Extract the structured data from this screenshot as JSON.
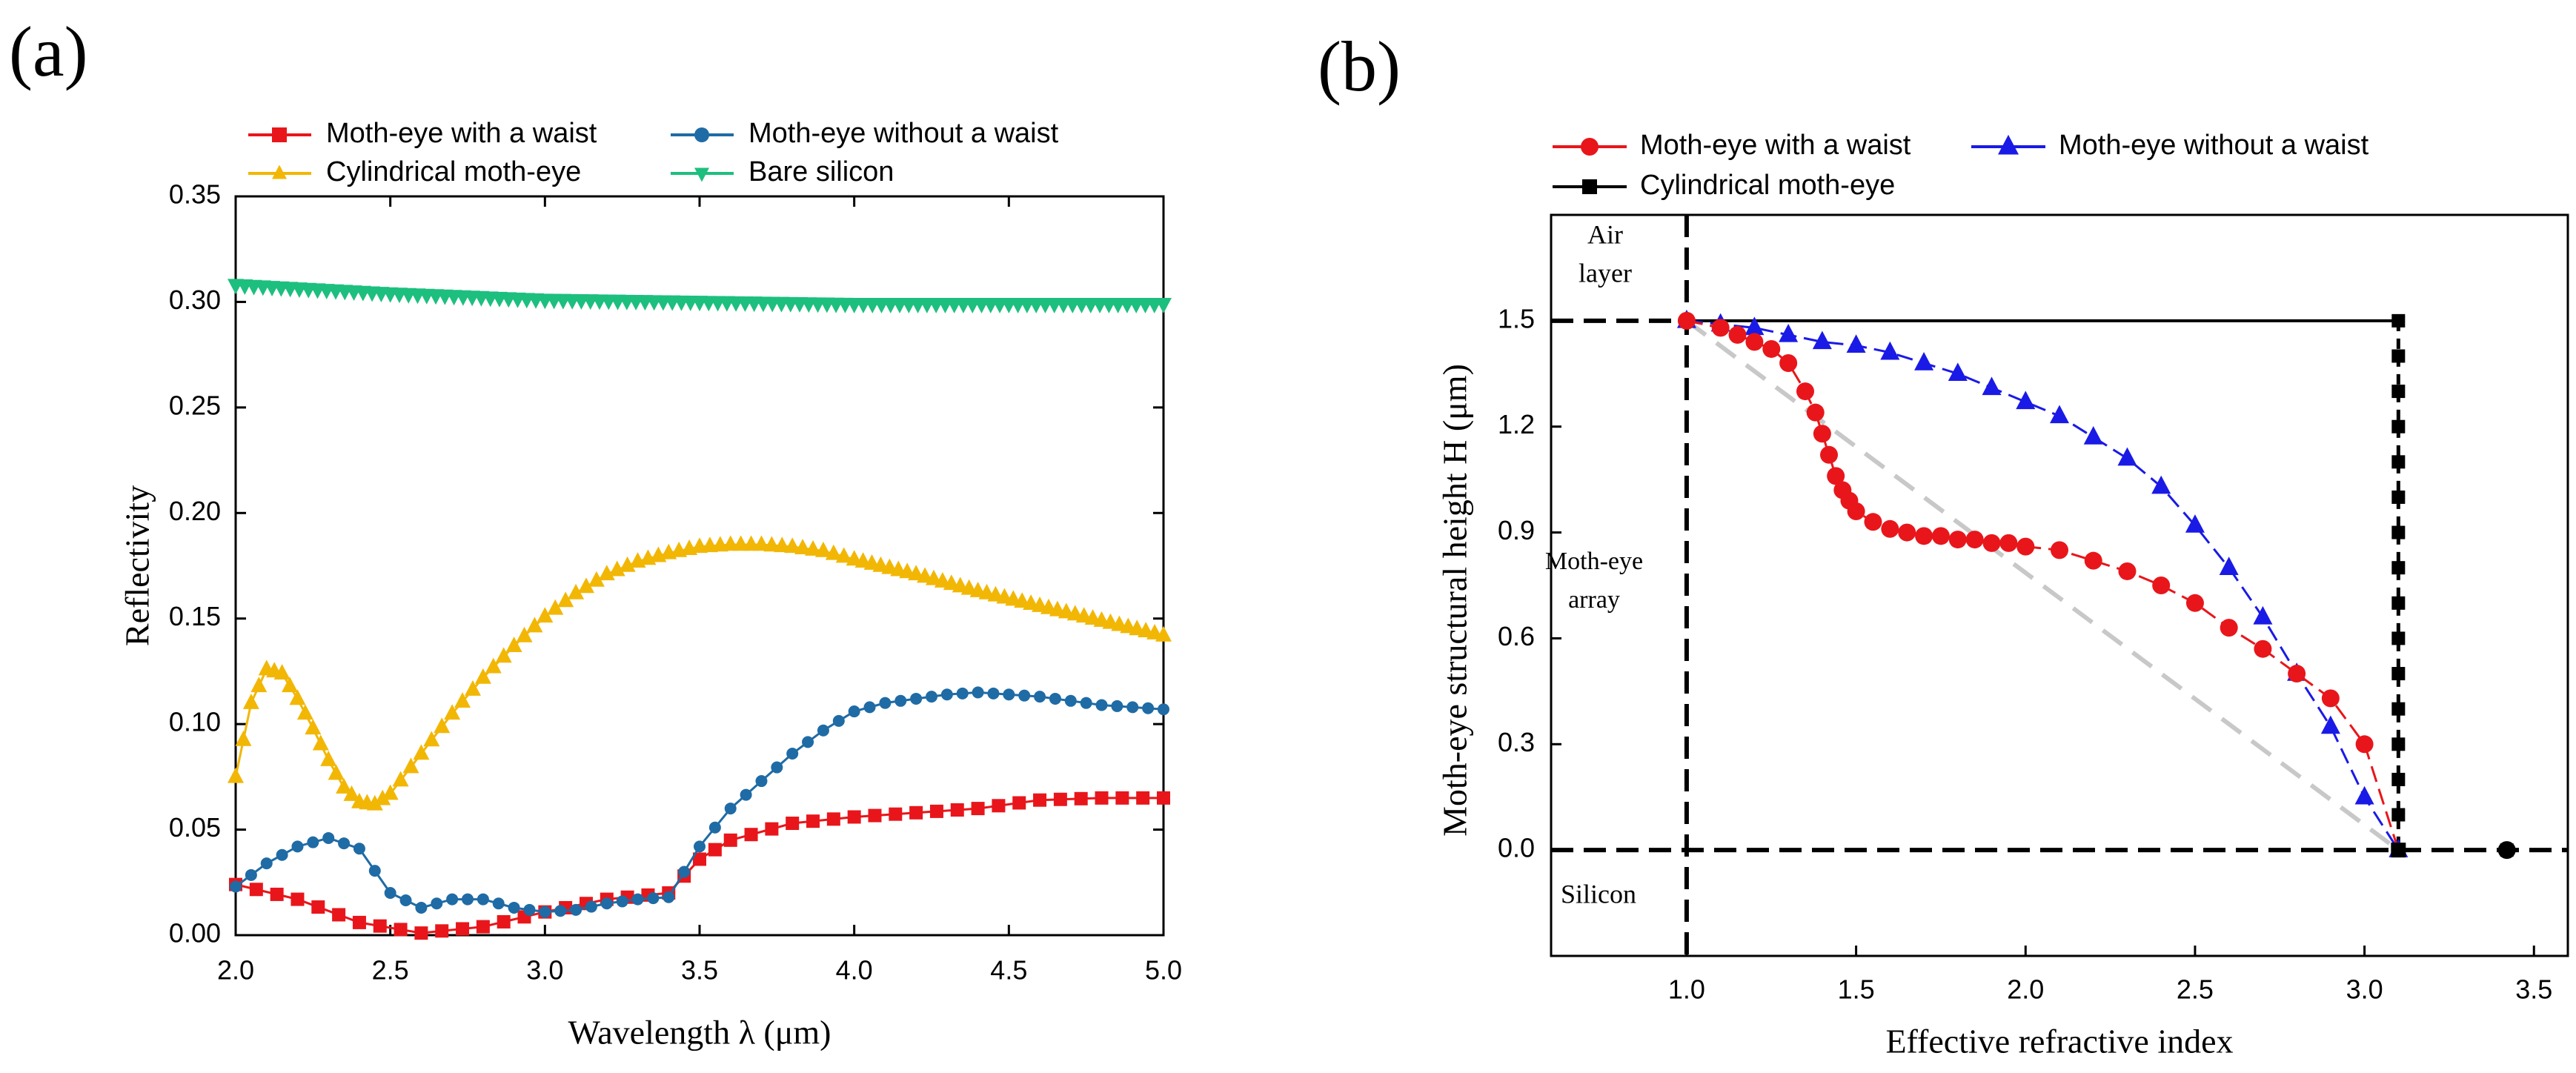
{
  "chart_data": [
    {
      "panel_label": "(a)",
      "type": "line",
      "xlabel": "Wavelength  λ (μm)",
      "ylabel": "Reflectivity",
      "xlim": [
        2.0,
        5.0
      ],
      "ylim": [
        0.0,
        0.35
      ],
      "xticks": [
        "2.0",
        "2.5",
        "3.0",
        "3.5",
        "4.0",
        "4.5",
        "5.0"
      ],
      "yticks": [
        "0.00",
        "0.05",
        "0.10",
        "0.15",
        "0.20",
        "0.25",
        "0.30",
        "0.35"
      ],
      "legend_position": "top",
      "series": [
        {
          "name": "Moth-eye with a waist",
          "color": "#e8161b",
          "marker": "square",
          "x": [
            2.0,
            2.2,
            2.4,
            2.6,
            2.8,
            3.0,
            3.2,
            3.4,
            3.5,
            3.6,
            3.8,
            4.0,
            4.2,
            4.4,
            4.6,
            4.8,
            5.0
          ],
          "y": [
            0.024,
            0.017,
            0.006,
            0.001,
            0.004,
            0.011,
            0.017,
            0.02,
            0.036,
            0.045,
            0.053,
            0.056,
            0.058,
            0.06,
            0.064,
            0.065,
            0.065
          ]
        },
        {
          "name": "Moth-eye without a waist",
          "color": "#1f6ba5",
          "marker": "circle",
          "x": [
            2.0,
            2.1,
            2.2,
            2.3,
            2.4,
            2.5,
            2.6,
            2.7,
            2.8,
            2.9,
            3.0,
            3.1,
            3.2,
            3.3,
            3.4,
            3.5,
            3.6,
            3.7,
            3.8,
            3.9,
            4.0,
            4.1,
            4.2,
            4.3,
            4.4,
            4.5,
            4.6,
            4.7,
            4.8,
            4.9,
            5.0
          ],
          "y": [
            0.023,
            0.034,
            0.042,
            0.046,
            0.041,
            0.02,
            0.013,
            0.017,
            0.017,
            0.013,
            0.011,
            0.012,
            0.015,
            0.017,
            0.018,
            0.042,
            0.06,
            0.073,
            0.086,
            0.097,
            0.106,
            0.11,
            0.112,
            0.114,
            0.115,
            0.114,
            0.113,
            0.111,
            0.109,
            0.108,
            0.107
          ]
        },
        {
          "name": "Cylindrical moth-eye",
          "color": "#f2b705",
          "marker": "triangle-up",
          "x": [
            2.0,
            2.05,
            2.1,
            2.15,
            2.2,
            2.25,
            2.3,
            2.35,
            2.4,
            2.45,
            2.5,
            2.6,
            2.7,
            2.8,
            2.9,
            3.0,
            3.1,
            3.2,
            3.3,
            3.4,
            3.5,
            3.6,
            3.7,
            3.8,
            3.9,
            4.0,
            4.2,
            4.4,
            4.6,
            4.8,
            5.0
          ],
          "y": [
            0.075,
            0.11,
            0.126,
            0.124,
            0.112,
            0.098,
            0.083,
            0.07,
            0.063,
            0.062,
            0.067,
            0.086,
            0.105,
            0.122,
            0.137,
            0.151,
            0.162,
            0.171,
            0.177,
            0.181,
            0.184,
            0.185,
            0.185,
            0.184,
            0.182,
            0.178,
            0.171,
            0.163,
            0.156,
            0.149,
            0.142
          ]
        },
        {
          "name": "Bare silicon",
          "color": "#1dbf7e",
          "marker": "triangle-down",
          "x": [
            2.0,
            2.5,
            3.0,
            3.5,
            4.0,
            4.5,
            5.0
          ],
          "y": [
            0.308,
            0.304,
            0.301,
            0.3,
            0.299,
            0.299,
            0.299
          ]
        }
      ]
    },
    {
      "panel_label": "(b)",
      "type": "line",
      "xlabel": "Effective refractive index",
      "ylabel": "Moth-eye structural height  H (μm)",
      "xlim": [
        0.6,
        3.6
      ],
      "ylim": [
        -0.3,
        1.8
      ],
      "xticks": [
        "1.0",
        "1.5",
        "2.0",
        "2.5",
        "3.0",
        "3.5"
      ],
      "yticks": [
        "0.0",
        "0.3",
        "0.6",
        "0.9",
        "1.2",
        "1.5"
      ],
      "legend_position": "top",
      "annotations": [
        "Air\nlayer",
        "Moth-eye\narray",
        "Silicon"
      ],
      "series": [
        {
          "name": "Moth-eye with a waist",
          "color": "#e8161b",
          "marker": "circle",
          "x": [
            1.0,
            1.1,
            1.15,
            1.2,
            1.25,
            1.3,
            1.35,
            1.38,
            1.4,
            1.42,
            1.44,
            1.46,
            1.48,
            1.5,
            1.55,
            1.6,
            1.65,
            1.7,
            1.75,
            1.8,
            1.85,
            1.9,
            1.95,
            2.0,
            2.1,
            2.2,
            2.3,
            2.4,
            2.5,
            2.6,
            2.7,
            2.8,
            2.9,
            3.0,
            3.1,
            3.42
          ],
          "y": [
            1.5,
            1.48,
            1.46,
            1.44,
            1.42,
            1.38,
            1.3,
            1.24,
            1.18,
            1.12,
            1.06,
            1.02,
            0.99,
            0.96,
            0.93,
            0.91,
            0.9,
            0.89,
            0.89,
            0.88,
            0.88,
            0.87,
            0.87,
            0.86,
            0.85,
            0.82,
            0.79,
            0.75,
            0.7,
            0.63,
            0.57,
            0.5,
            0.43,
            0.3,
            0.0,
            0.0
          ]
        },
        {
          "name": "Moth-eye without a waist",
          "color": "#1a1ae6",
          "marker": "triangle-up",
          "x": [
            1.0,
            1.1,
            1.2,
            1.3,
            1.4,
            1.5,
            1.6,
            1.7,
            1.8,
            1.9,
            2.0,
            2.1,
            2.2,
            2.3,
            2.4,
            2.5,
            2.6,
            2.7,
            2.8,
            2.9,
            3.0,
            3.1
          ],
          "y": [
            1.5,
            1.49,
            1.48,
            1.46,
            1.44,
            1.43,
            1.41,
            1.38,
            1.35,
            1.31,
            1.27,
            1.23,
            1.17,
            1.11,
            1.03,
            0.92,
            0.8,
            0.66,
            0.5,
            0.35,
            0.15,
            0.0
          ]
        },
        {
          "name": "Cylindrical moth-eye",
          "color": "#000000",
          "marker": "square",
          "x": [
            1.0,
            3.1,
            3.1,
            3.1,
            3.1,
            3.1,
            3.1,
            3.1,
            3.1,
            3.1,
            3.1,
            3.1,
            3.1,
            3.1,
            3.1,
            3.1,
            3.1,
            3.1
          ],
          "y": [
            1.5,
            1.5,
            1.4,
            1.3,
            1.2,
            1.1,
            1.0,
            0.9,
            0.8,
            0.7,
            0.6,
            0.5,
            0.4,
            0.3,
            0.2,
            0.1,
            0.0,
            0.0
          ]
        }
      ],
      "reference_line": {
        "x": [
          1.0,
          3.1
        ],
        "y": [
          1.5,
          0.0
        ],
        "color": "#c8c8c8"
      }
    }
  ]
}
